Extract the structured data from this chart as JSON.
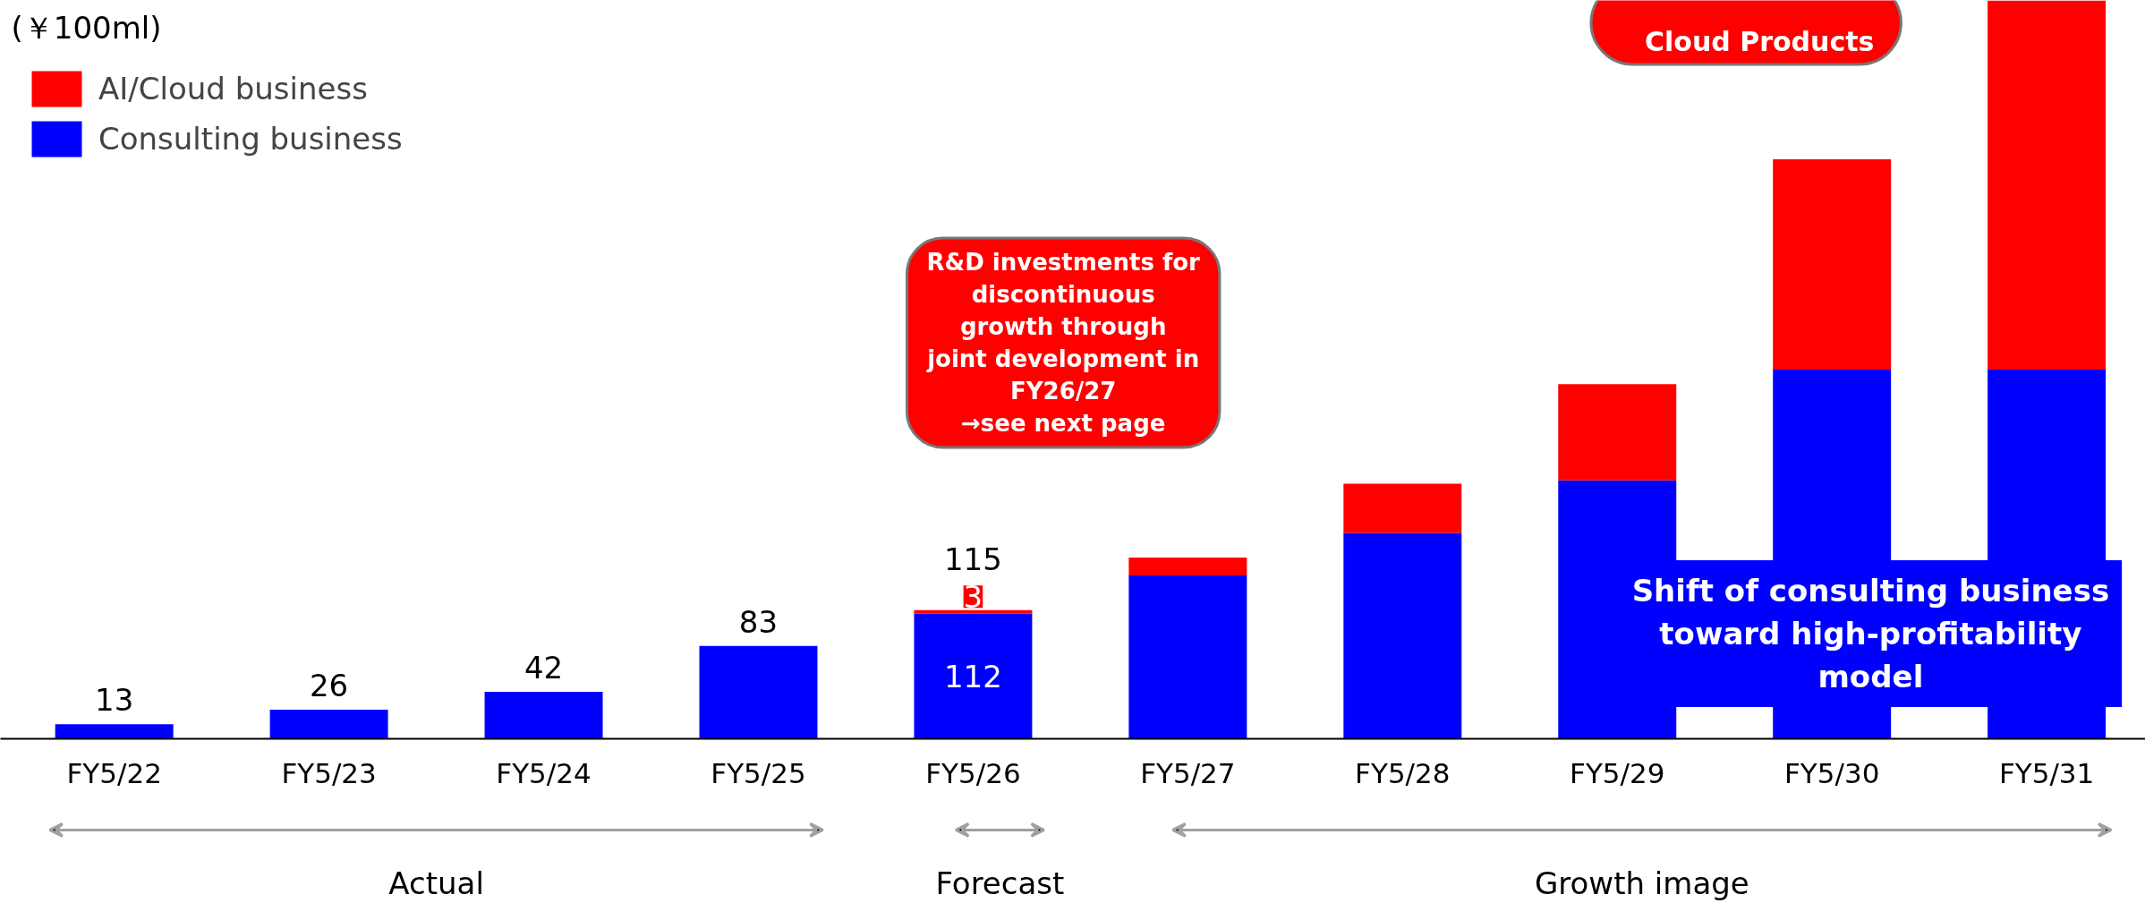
{
  "chart_data": {
    "type": "bar",
    "stacked": true,
    "ylabel": "(￥100ml)",
    "categories": [
      "FY5/22",
      "FY5/23",
      "FY5/24",
      "FY5/25",
      "FY5/26",
      "FY5/27",
      "FY5/28",
      "FY5/29",
      "FY5/30",
      "FY5/31"
    ],
    "series": [
      {
        "name": "Consulting business",
        "color": "#0000ff",
        "values": [
          13,
          26,
          42,
          83,
          112,
          146,
          184,
          231,
          330,
          330
        ],
        "value_labels": [
          null,
          null,
          null,
          null,
          "112",
          null,
          null,
          null,
          null,
          null
        ]
      },
      {
        "name": "AI/Cloud business",
        "color": "#ff0000",
        "values": [
          null,
          null,
          null,
          null,
          3,
          16,
          44,
          86,
          188,
          330
        ],
        "value_labels": [
          null,
          null,
          null,
          null,
          "3",
          null,
          null,
          null,
          null,
          null
        ]
      }
    ],
    "totals": [
      "13",
      "26",
      "42",
      "83",
      "115",
      null,
      null,
      null,
      null,
      null
    ],
    "ylim": [
      0,
      660
    ],
    "legend": "top left",
    "grid": false,
    "annotations": [
      "Cloud Products",
      "R&D investments for\ndiscontinuous\ngrowth through\njoint development in\nFY26/27\n→see next page",
      "Shift of consulting business\ntoward high-profitability\nmodel",
      "Actual",
      "Forecast",
      "Growth image"
    ]
  }
}
